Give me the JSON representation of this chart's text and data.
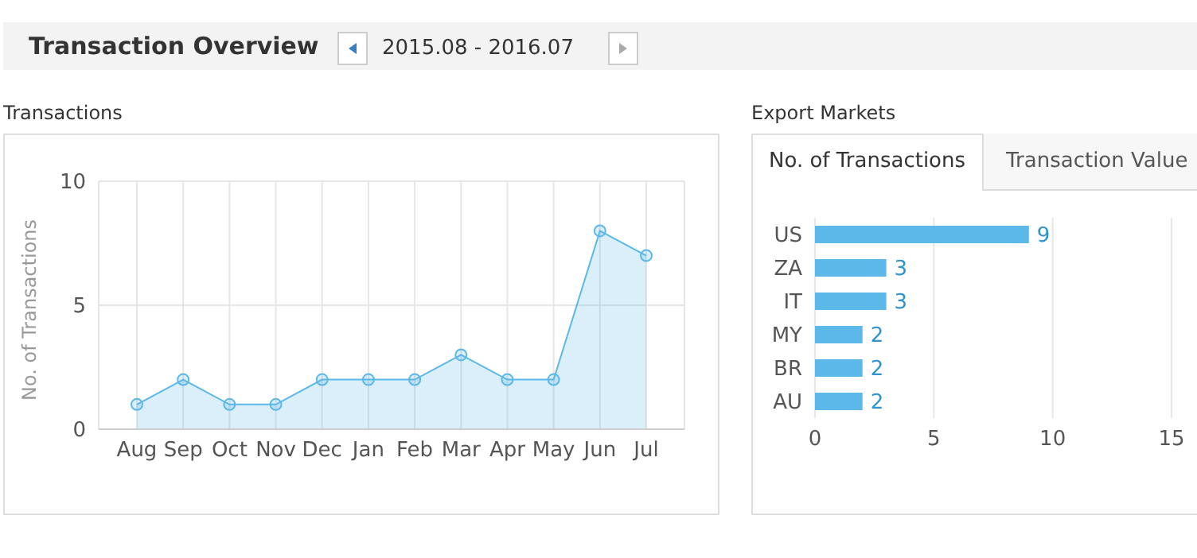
{
  "chart_data": [
    {
      "type": "area",
      "title": "Transactions",
      "ylabel": "No. of Transactions",
      "annotations": [
        "Transaction Overview",
        "2015.08 - 2016.07"
      ],
      "categories": [
        "Aug",
        "Sep",
        "Oct",
        "Nov",
        "Dec",
        "Jan",
        "Feb",
        "Mar",
        "Apr",
        "May",
        "Jun",
        "Jul"
      ],
      "series": [
        {
          "color": "#5bb8e8",
          "values": [
            1,
            2,
            1,
            1,
            2,
            2,
            2,
            3,
            2,
            2,
            8,
            7
          ]
        }
      ],
      "ylim": [
        0,
        10
      ],
      "yticks": [
        0,
        5,
        10
      ],
      "grid": true,
      "marker": "circle",
      "legend": false
    },
    {
      "type": "bar",
      "orientation": "horizontal",
      "title": "Export Markets",
      "annotations": [
        "No. of Transactions",
        "Transaction Value"
      ],
      "categories": [
        "US",
        "ZA",
        "IT",
        "MY",
        "BR",
        "AU"
      ],
      "series": [
        {
          "color": "#5bb8e8",
          "values": [
            9,
            3,
            3,
            2,
            2,
            2
          ]
        }
      ],
      "xlim": [
        0,
        15
      ],
      "xticks": [
        0,
        5,
        10,
        15
      ],
      "grid": "x",
      "data_labels": true,
      "legend": false
    }
  ]
}
